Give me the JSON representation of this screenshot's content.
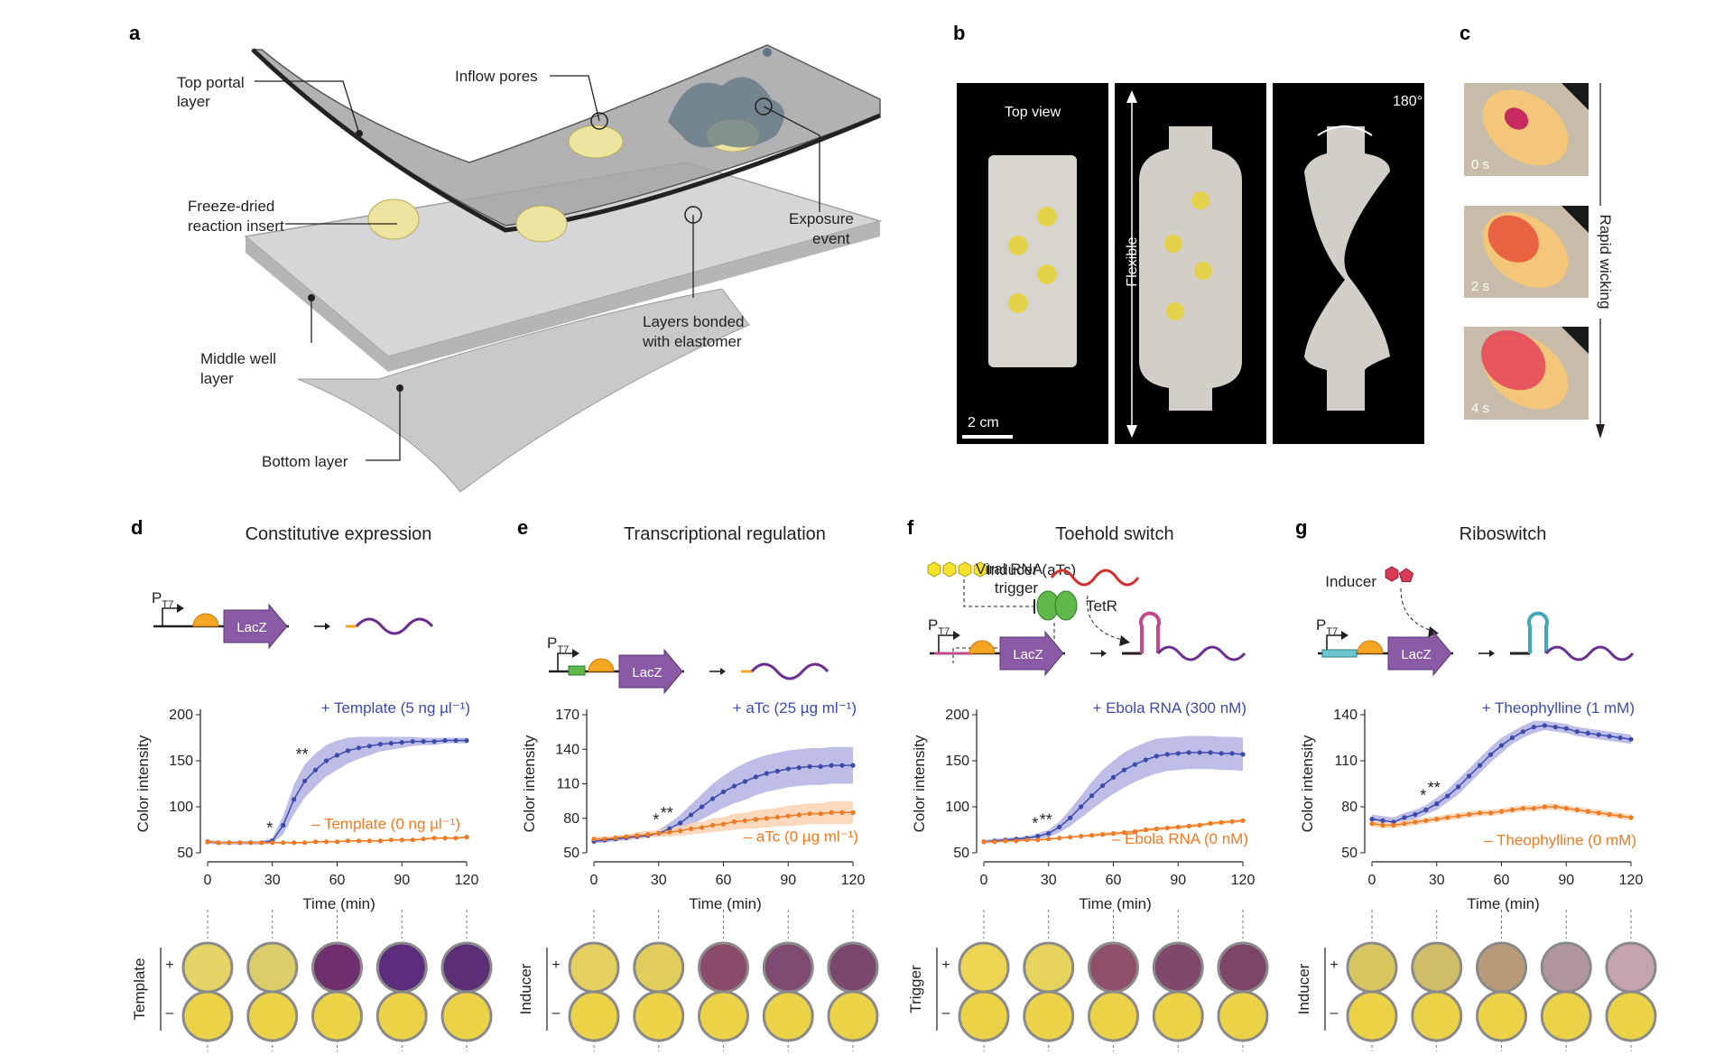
{
  "panels": {
    "a": {
      "letter": "a",
      "labels": {
        "top_portal": [
          "Top portal",
          "layer"
        ],
        "inflow": "Inflow pores",
        "freeze": [
          "Freeze-dried",
          "reaction insert"
        ],
        "exposure": [
          "Exposure",
          "event"
        ],
        "bonded": [
          "Layers bonded",
          "with elastomer"
        ],
        "middle": [
          "Middle well",
          "layer"
        ],
        "bottom": "Bottom layer"
      }
    },
    "b": {
      "letter": "b",
      "top_view": "Top view",
      "flexible": "Flexible",
      "angle": "180°",
      "scale": "2 cm"
    },
    "c": {
      "letter": "c",
      "times": [
        "0 s",
        "2 s",
        "4 s"
      ],
      "arrow_label": "Rapid wicking"
    },
    "d": {
      "letter": "d",
      "title": "Constitutive expression",
      "diagram": {
        "promoter": "P",
        "promoter_sub": "T7",
        "gene": "LacZ"
      },
      "plus_label": "+ Template (5 ng µl⁻¹)",
      "minus_label": "– Template (0 ng µl⁻¹)",
      "well_row_label": "Template"
    },
    "e": {
      "letter": "e",
      "title": "Transcriptional regulation",
      "diagram": {
        "inducer": "Inducer (aTc)",
        "repressor": "TetR",
        "promoter": "P",
        "promoter_sub": "T7",
        "gene": "LacZ"
      },
      "plus_label": "+ aTc (25 µg ml⁻¹)",
      "minus_label": "– aTc (0 µg ml⁻¹)",
      "well_row_label": "Inducer"
    },
    "f": {
      "letter": "f",
      "title": "Toehold switch",
      "diagram": {
        "trigger": [
          "Viral RNA",
          "trigger"
        ],
        "promoter": "P",
        "promoter_sub": "T7",
        "gene": "LacZ"
      },
      "plus_label": "+ Ebola RNA (300 nM)",
      "minus_label": "– Ebola RNA (0 nM)",
      "well_row_label": "Trigger"
    },
    "g": {
      "letter": "g",
      "title": "Riboswitch",
      "diagram": {
        "inducer": "Inducer",
        "promoter": "P",
        "promoter_sub": "T7",
        "gene": "LacZ"
      },
      "plus_label": "+ Theophylline (1 mM)",
      "minus_label": "– Theophylline (0 mM)",
      "well_row_label": "Inducer"
    }
  },
  "wells": {
    "plus": "+",
    "minus": "–"
  },
  "colors": {
    "blue": "#3b4bab",
    "blue_band": "#b3b1e3",
    "orange": "#f07a22",
    "orange_band": "#fbd2b0",
    "purple": "#6b2f91",
    "lacz": "#8a5aa6",
    "yellow": "#f2e060"
  },
  "chart_data": [
    {
      "type": "line",
      "panel": "d",
      "xlabel": "Time (min)",
      "ylabel": "Color intensity",
      "xlim": [
        0,
        120
      ],
      "ylim": [
        50,
        200
      ],
      "xticks": [
        0,
        30,
        60,
        90,
        120
      ],
      "yticks": [
        50,
        100,
        150,
        200
      ],
      "x": [
        0,
        5,
        10,
        15,
        20,
        25,
        30,
        35,
        40,
        45,
        50,
        55,
        60,
        65,
        70,
        75,
        80,
        85,
        90,
        95,
        100,
        105,
        110,
        115,
        120
      ],
      "series": [
        {
          "name": "+ Template (5 ng µl⁻¹)",
          "color": "blue",
          "values": [
            62,
            61,
            61,
            61,
            61,
            61,
            63,
            80,
            108,
            128,
            140,
            150,
            156,
            161,
            164,
            166,
            168,
            169,
            170,
            171,
            171,
            171,
            172,
            172,
            172
          ],
          "band": [
            2,
            2,
            2,
            2,
            2,
            2,
            3,
            10,
            16,
            18,
            18,
            17,
            16,
            14,
            12,
            10,
            8,
            7,
            6,
            5,
            4,
            4,
            3,
            3,
            3
          ]
        },
        {
          "name": "– Template (0 ng µl⁻¹)",
          "color": "orange",
          "values": [
            62,
            61,
            61,
            61,
            61,
            61,
            61,
            61,
            61,
            61,
            62,
            62,
            62,
            63,
            63,
            63,
            63,
            64,
            64,
            64,
            65,
            66,
            66,
            66,
            67
          ],
          "band": [
            1,
            1,
            1,
            1,
            1,
            1,
            1,
            1,
            1,
            1,
            1,
            1,
            1,
            1,
            1,
            1,
            1,
            1,
            1,
            1,
            1,
            1,
            1,
            1,
            1
          ]
        }
      ],
      "significance": [
        {
          "x": 30,
          "label": "*"
        },
        {
          "x": 45,
          "label": "**"
        }
      ]
    },
    {
      "type": "line",
      "panel": "e",
      "xlabel": "Time (min)",
      "ylabel": "Color intensity",
      "xlim": [
        0,
        120
      ],
      "ylim": [
        50,
        170
      ],
      "xticks": [
        0,
        30,
        60,
        90,
        120
      ],
      "yticks": [
        50,
        80,
        110,
        140,
        170
      ],
      "x": [
        0,
        5,
        10,
        15,
        20,
        25,
        30,
        35,
        40,
        45,
        50,
        55,
        60,
        65,
        70,
        75,
        80,
        85,
        90,
        95,
        100,
        105,
        110,
        115,
        120
      ],
      "series": [
        {
          "name": "+ aTc (25 µg ml⁻¹)",
          "color": "blue",
          "values": [
            60,
            61,
            62,
            63,
            64,
            65,
            67,
            71,
            76,
            83,
            90,
            97,
            103,
            108,
            112,
            116,
            119,
            121,
            123,
            124,
            125,
            125,
            126,
            126,
            126
          ],
          "band": [
            2,
            2,
            2,
            2,
            2,
            2,
            3,
            5,
            7,
            9,
            11,
            13,
            14,
            15,
            16,
            16,
            16,
            16,
            16,
            16,
            16,
            16,
            16,
            16,
            16
          ]
        },
        {
          "name": "– aTc (0 µg ml⁻¹)",
          "color": "orange",
          "values": [
            62,
            62,
            63,
            64,
            65,
            66,
            67,
            68,
            69,
            71,
            72,
            74,
            75,
            77,
            78,
            79,
            80,
            81,
            82,
            83,
            84,
            84,
            85,
            85,
            85
          ],
          "band": [
            2,
            2,
            2,
            2,
            3,
            3,
            3,
            4,
            4,
            5,
            5,
            6,
            6,
            7,
            7,
            8,
            8,
            8,
            9,
            9,
            9,
            9,
            10,
            10,
            10
          ]
        }
      ],
      "significance": [
        {
          "x": 30,
          "label": "*"
        },
        {
          "x": 35,
          "label": "**"
        }
      ]
    },
    {
      "type": "line",
      "panel": "f",
      "xlabel": "Time (min)",
      "ylabel": "Color intensity",
      "xlim": [
        0,
        120
      ],
      "ylim": [
        50,
        200
      ],
      "xticks": [
        0,
        30,
        60,
        90,
        120
      ],
      "yticks": [
        50,
        100,
        150,
        200
      ],
      "x": [
        0,
        5,
        10,
        15,
        20,
        25,
        30,
        35,
        40,
        45,
        50,
        55,
        60,
        65,
        70,
        75,
        80,
        85,
        90,
        95,
        100,
        105,
        110,
        115,
        120
      ],
      "series": [
        {
          "name": "+ Ebola RNA (300 nM)",
          "color": "blue",
          "values": [
            62,
            63,
            64,
            65,
            66,
            68,
            71,
            78,
            88,
            100,
            112,
            123,
            132,
            140,
            146,
            151,
            155,
            157,
            158,
            159,
            159,
            159,
            158,
            158,
            157
          ],
          "band": [
            2,
            2,
            2,
            2,
            2,
            3,
            4,
            6,
            9,
            12,
            15,
            17,
            18,
            19,
            19,
            19,
            19,
            18,
            18,
            18,
            18,
            18,
            18,
            18,
            18
          ]
        },
        {
          "name": "– Ebola RNA (0 nM)",
          "color": "orange",
          "values": [
            62,
            62,
            63,
            63,
            64,
            64,
            65,
            66,
            67,
            68,
            69,
            70,
            71,
            72,
            73,
            75,
            76,
            77,
            78,
            79,
            80,
            82,
            83,
            84,
            85
          ],
          "band": [
            1,
            1,
            1,
            1,
            1,
            1,
            1,
            1,
            1,
            1,
            2,
            2,
            2,
            2,
            2,
            2,
            2,
            2,
            2,
            2,
            2,
            2,
            2,
            2,
            2
          ]
        }
      ],
      "significance": [
        {
          "x": 25,
          "label": "*"
        },
        {
          "x": 30,
          "label": "**"
        }
      ]
    },
    {
      "type": "line",
      "panel": "g",
      "xlabel": "Time (min)",
      "ylabel": "Color intensity",
      "xlim": [
        0,
        120
      ],
      "ylim": [
        50,
        140
      ],
      "xticks": [
        0,
        30,
        60,
        90,
        120
      ],
      "yticks": [
        50,
        80,
        110,
        140
      ],
      "x": [
        0,
        5,
        10,
        15,
        20,
        25,
        30,
        35,
        40,
        45,
        50,
        55,
        60,
        65,
        70,
        75,
        80,
        85,
        90,
        95,
        100,
        105,
        110,
        115,
        120
      ],
      "series": [
        {
          "name": "+ Theophylline (1 mM)",
          "color": "blue",
          "values": [
            72,
            71,
            70,
            73,
            75,
            78,
            82,
            87,
            93,
            100,
            107,
            114,
            120,
            125,
            129,
            132,
            133,
            132,
            131,
            129,
            128,
            127,
            126,
            125,
            124
          ],
          "band": [
            3,
            3,
            3,
            3,
            3,
            3,
            4,
            4,
            5,
            5,
            5,
            5,
            5,
            4,
            4,
            4,
            3,
            3,
            3,
            3,
            3,
            3,
            3,
            3,
            3
          ]
        },
        {
          "name": "– Theophylline (0 mM)",
          "color": "orange",
          "values": [
            69,
            68,
            68,
            69,
            70,
            71,
            72,
            73,
            74,
            75,
            76,
            76,
            77,
            78,
            79,
            79,
            80,
            80,
            79,
            78,
            77,
            76,
            75,
            74,
            73
          ],
          "band": [
            2,
            2,
            2,
            2,
            2,
            2,
            2,
            2,
            2,
            2,
            2,
            2,
            2,
            2,
            2,
            2,
            2,
            2,
            2,
            2,
            2,
            2,
            2,
            2,
            2
          ]
        }
      ],
      "significance": [
        {
          "x": 25,
          "label": "*"
        },
        {
          "x": 30,
          "label": "**"
        }
      ]
    }
  ]
}
